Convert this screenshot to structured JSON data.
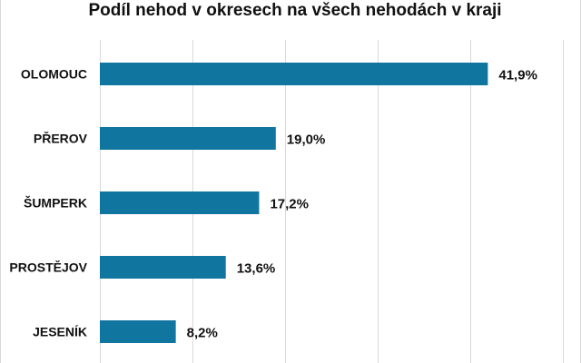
{
  "chart_data": {
    "type": "bar",
    "orientation": "horizontal",
    "title": "Podíl nehod v okresech na všech nehodách v kraji",
    "categories": [
      "OLOMOUC",
      "PŘEROV",
      "ŠUMPERK",
      "PROSTĚJOV",
      "JESENÍK"
    ],
    "values": [
      41.9,
      19.0,
      17.2,
      13.6,
      8.2
    ],
    "data_labels": [
      "41,9%",
      "19,0%",
      "17,2%",
      "13,6%",
      "8,2%"
    ],
    "xlim": [
      0,
      50
    ],
    "x_gridlines": [
      0,
      10,
      20,
      30,
      40,
      50
    ],
    "grid": true,
    "legend": "none",
    "bar_color": "#1076a0"
  }
}
